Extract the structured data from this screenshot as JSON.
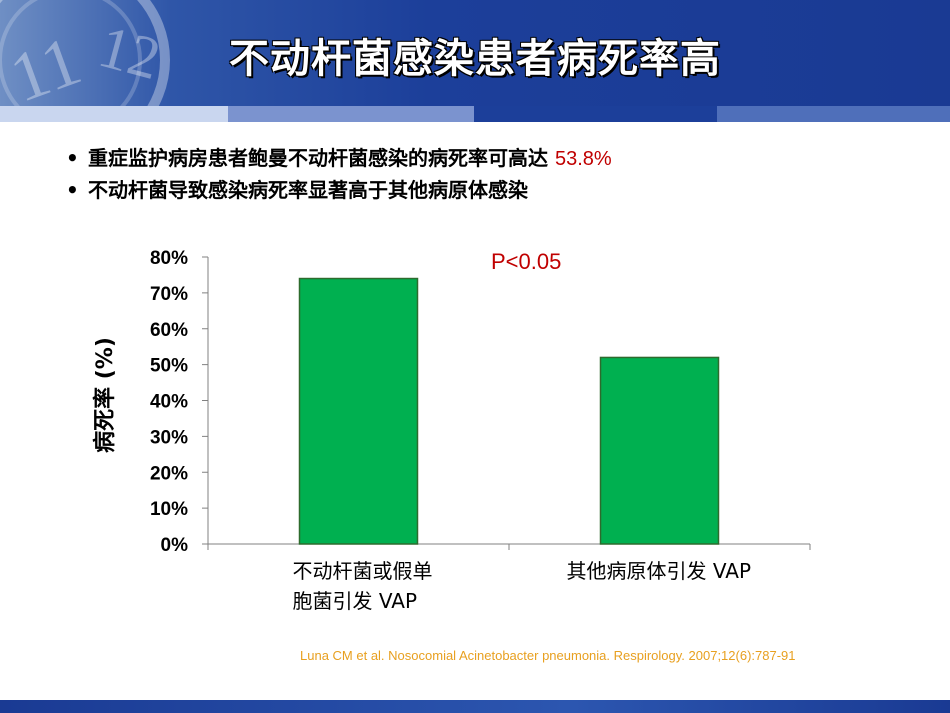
{
  "slide": {
    "title": "不动杆菌感染患者病死率高",
    "bullets": [
      {
        "bullet": "•",
        "text": "重症监护病房患者鲍曼不动杆菌感染的病死率可高达 ",
        "highlight": "53.8%"
      },
      {
        "bullet": "•",
        "text": "不动杆菌导致感染病死率显著高于其他病原体感染",
        "highlight": ""
      }
    ],
    "citation": "Luna CM et al. Nosocomial Acinetobacter pneumonia. Respirology. 2007;12(6):787-91",
    "colors": {
      "header": "#1a3a93",
      "bar": "#00b050",
      "highlight": "#c00000",
      "citation": "#e8a020"
    }
  },
  "chart_data": {
    "type": "bar",
    "categories": [
      "不动杆菌或假单\n胞菌引发 VAP",
      "其他病原体引发 VAP"
    ],
    "values": [
      74,
      52
    ],
    "ylabel": "病死率 (%)",
    "yticks": [
      "0%",
      "10%",
      "20%",
      "30%",
      "40%",
      "50%",
      "60%",
      "70%",
      "80%"
    ],
    "ylim": [
      0,
      80
    ],
    "annotation": "P<0.05",
    "grid": false,
    "bar_color": "#00b050"
  }
}
